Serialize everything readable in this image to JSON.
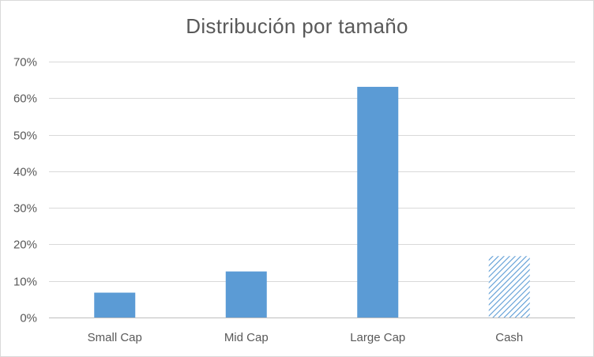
{
  "chart_data": {
    "type": "bar",
    "title": "Distribución por tamaño",
    "categories": [
      "Small Cap",
      "Mid Cap",
      "Large Cap",
      "Cash"
    ],
    "values": [
      0.068,
      0.126,
      0.631,
      0.168
    ],
    "value_unit": "fraction",
    "ylim": [
      0,
      0.7
    ],
    "yticks": [
      0,
      0.1,
      0.2,
      0.3,
      0.4,
      0.5,
      0.6,
      0.7
    ],
    "ytick_labels": [
      "0%",
      "10%",
      "20%",
      "30%",
      "40%",
      "50%",
      "60%",
      "70%"
    ],
    "grid": true,
    "legend": "none",
    "bar_color": "#5b9bd5",
    "bar_patterns": [
      "solid",
      "solid",
      "solid",
      "diagonal-hatch"
    ],
    "xlabel": "",
    "ylabel": ""
  }
}
